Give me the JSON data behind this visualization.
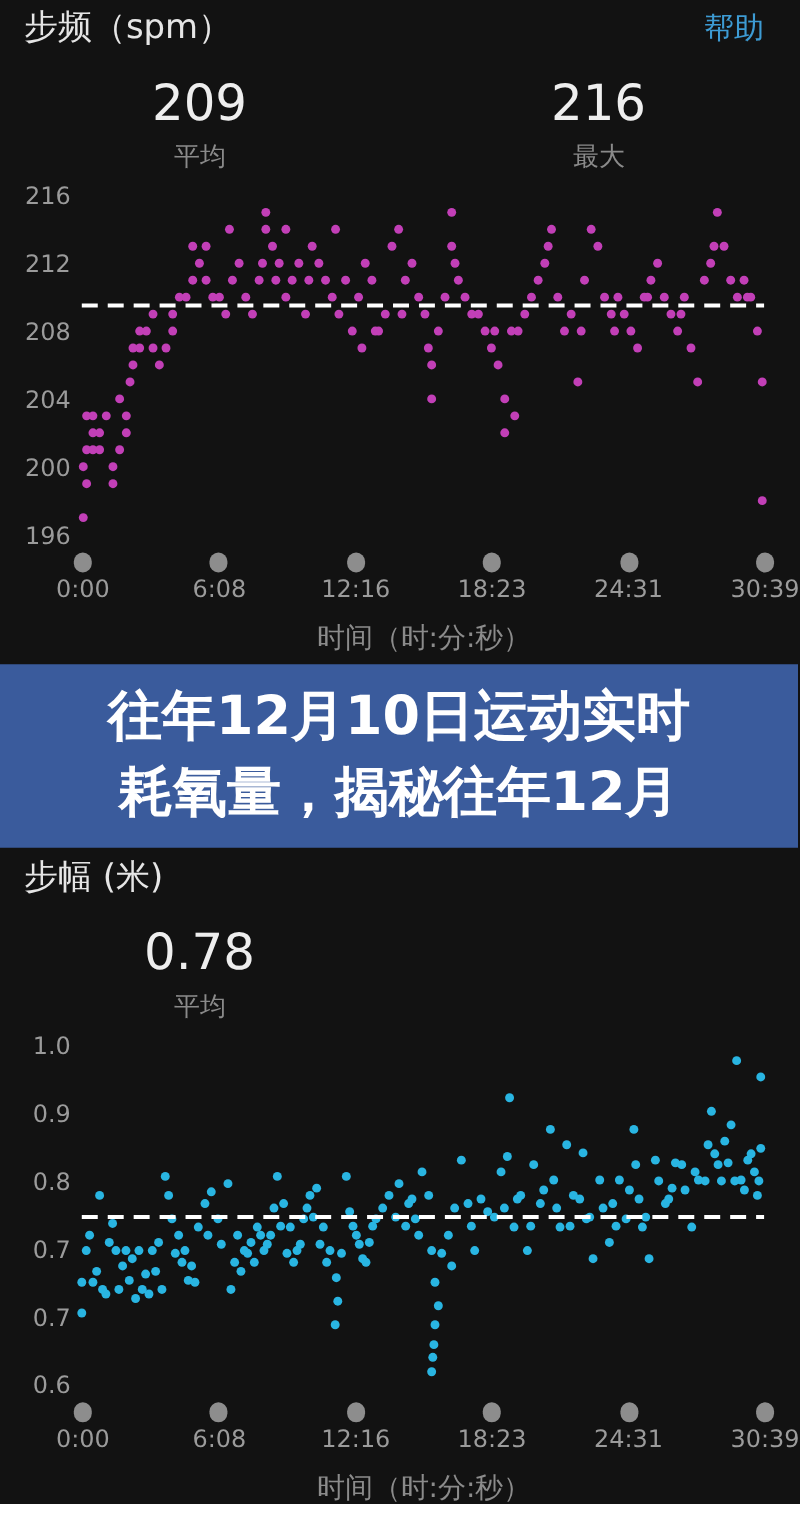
{
  "chart_data": [
    {
      "type": "scatter",
      "title": "步频（spm）",
      "annotations": [
        "帮助",
        "209",
        "平均",
        "216",
        "最大"
      ],
      "xlabel": "时间（时:分:秒）",
      "marker": "circle",
      "x": [
        4,
        4,
        13,
        13,
        13,
        30,
        30,
        30,
        48,
        48,
        66,
        84,
        84,
        102,
        102,
        120,
        120,
        130,
        138,
        138,
        156,
        156,
        174,
        192,
        192,
        209,
        227,
        245,
        245,
        263,
        281,
        299,
        299,
        317,
        335,
        335,
        353,
        371,
        388,
        406,
        424,
        442,
        460,
        478,
        496,
        496,
        514,
        532,
        550,
        550,
        567,
        585,
        603,
        621,
        639,
        657,
        675,
        693,
        711,
        729,
        746,
        764,
        782,
        800,
        818,
        836,
        854,
        872,
        890,
        908,
        925,
        943,
        943,
        961,
        979,
        997,
        997,
        1015,
        1033,
        1051,
        1069,
        1087,
        1104,
        1122,
        1140,
        1140,
        1158,
        1176,
        1194,
        1212,
        1230,
        1248,
        1266,
        1283,
        1301,
        1319,
        1337,
        1355,
        1373,
        1391,
        1409,
        1427,
        1445,
        1462,
        1480,
        1498,
        1516,
        1534,
        1552,
        1570,
        1588,
        1606,
        1624,
        1642,
        1660,
        1678,
        1695,
        1713,
        1731,
        1749,
        1767,
        1785,
        1803,
        1821,
        1834,
        1834,
        398,
        487,
        523,
        612,
        684,
        755,
        791,
        863,
        934,
        1006,
        1113,
        1167,
        1257,
        1346,
        1436,
        1525,
        1615,
        1704,
        1794
      ],
      "series": [
        {
          "color": "#c23fb7",
          "values": [
            197,
            200,
            199,
            201,
            203,
            202,
            201,
            203,
            202,
            201,
            203,
            200,
            199,
            201,
            204,
            202,
            203,
            205,
            206,
            207,
            208,
            207,
            208,
            209,
            207,
            206,
            207,
            208,
            209,
            210,
            210,
            211,
            213,
            212,
            213,
            211,
            210,
            210,
            209,
            211,
            212,
            210,
            209,
            211,
            215,
            214,
            213,
            212,
            214,
            210,
            211,
            212,
            209,
            213,
            212,
            211,
            210,
            209,
            211,
            208,
            210,
            212,
            211,
            208,
            209,
            213,
            214,
            211,
            212,
            210,
            209,
            204,
            206,
            208,
            210,
            215,
            213,
            211,
            210,
            209,
            209,
            208,
            207,
            206,
            202,
            204,
            208,
            208,
            209,
            210,
            211,
            212,
            214,
            210,
            208,
            209,
            205,
            211,
            214,
            213,
            210,
            209,
            210,
            209,
            208,
            207,
            210,
            211,
            212,
            210,
            209,
            208,
            210,
            207,
            205,
            211,
            212,
            215,
            213,
            211,
            210,
            211,
            210,
            208,
            205,
            198,
            214,
            212,
            211,
            211,
            214,
            207,
            208,
            209,
            207,
            212,
            208,
            203,
            213,
            208,
            208,
            210,
            209,
            213,
            210
          ]
        }
      ],
      "xlim": [
        0,
        1839
      ],
      "xticks": [
        {
          "value": 0,
          "label": "0:00"
        },
        {
          "value": 368,
          "label": "6:08"
        },
        {
          "value": 736,
          "label": "12:16"
        },
        {
          "value": 1103,
          "label": "18:23"
        },
        {
          "value": 1471,
          "label": "24:31"
        },
        {
          "value": 1839,
          "label": "30:39"
        }
      ],
      "ylim": [
        196,
        216
      ],
      "yticks": [
        196,
        200,
        204,
        208,
        212,
        216
      ],
      "ref_lines": [
        {
          "axis": "y",
          "value": 209.5,
          "color": "#ffffff",
          "line_style": "dashed"
        }
      ]
    },
    {
      "type": "other",
      "title": "往年12月10日运动实时耗氧量，揭秘往年12月"
    },
    {
      "type": "scatter",
      "title": "步幅 (米)",
      "annotations": [
        "0.78",
        "平均"
      ],
      "xlabel": "时间（时:分:秒）",
      "marker": "circle",
      "x": [
        0,
        0,
        12,
        21,
        30,
        48,
        65,
        74,
        83,
        92,
        110,
        119,
        136,
        154,
        172,
        181,
        190,
        207,
        225,
        234,
        243,
        261,
        278,
        296,
        305,
        314,
        332,
        349,
        367,
        394,
        402,
        420,
        438,
        456,
        473,
        491,
        509,
        527,
        544,
        562,
        580,
        598,
        615,
        633,
        651,
        669,
        686,
        690,
        683,
        713,
        722,
        740,
        757,
        775,
        793,
        828,
        855,
        881,
        899,
        917,
        935,
        943,
        952,
        961,
        952,
        949,
        946,
        943,
        988,
        997,
        1023,
        1041,
        1059,
        1094,
        1130,
        1147,
        1153,
        1165,
        1183,
        1201,
        1218,
        1236,
        1263,
        1272,
        1289,
        1307,
        1325,
        1351,
        1360,
        1378,
        1396,
        1422,
        1431,
        1449,
        1467,
        1488,
        1493,
        1511,
        1529,
        1546,
        1573,
        1591,
        1617,
        1644,
        1662,
        1688,
        1697,
        1715,
        1733,
        1750,
        1765,
        1777,
        1795,
        1813,
        1821,
        1830,
        1830,
        40,
        56,
        100,
        128,
        145,
        163,
        199,
        216,
        252,
        270,
        287,
        340,
        376,
        412,
        429,
        447,
        465,
        482,
        500,
        518,
        536,
        553,
        571,
        589,
        607,
        624,
        642,
        660,
        700,
        731,
        748,
        766,
        784,
        811,
        846,
        873,
        890,
        908,
        970,
        1005,
        1050,
        1076,
        1112,
        1139,
        1174,
        1210,
        1245,
        1280,
        1316,
        1342,
        1369,
        1405,
        1440,
        1476,
        1502,
        1520,
        1555,
        1582,
        1600,
        1626,
        1653,
        1680,
        1706,
        1724,
        1742,
        1760,
        1786,
        1804,
        1825
      ],
      "series": [
        {
          "color": "#29b5e2",
          "values": [
            0.674,
            0.708,
            0.743,
            0.76,
            0.708,
            0.804,
            0.695,
            0.752,
            0.773,
            0.743,
            0.726,
            0.743,
            0.734,
            0.743,
            0.717,
            0.695,
            0.743,
            0.752,
            0.825,
            0.804,
            0.778,
            0.76,
            0.743,
            0.726,
            0.708,
            0.769,
            0.795,
            0.808,
            0.778,
            0.817,
            0.7,
            0.76,
            0.743,
            0.752,
            0.769,
            0.743,
            0.76,
            0.825,
            0.795,
            0.769,
            0.743,
            0.778,
            0.804,
            0.812,
            0.769,
            0.743,
            0.713,
            0.687,
            0.661,
            0.825,
            0.786,
            0.76,
            0.734,
            0.752,
            0.778,
            0.804,
            0.817,
            0.795,
            0.778,
            0.83,
            0.804,
            0.743,
            0.708,
            0.682,
            0.661,
            0.639,
            0.625,
            0.609,
            0.76,
            0.726,
            0.843,
            0.795,
            0.743,
            0.786,
            0.83,
            0.847,
            0.912,
            0.769,
            0.804,
            0.743,
            0.838,
            0.795,
            0.877,
            0.821,
            0.769,
            0.86,
            0.804,
            0.851,
            0.778,
            0.734,
            0.821,
            0.752,
            0.795,
            0.821,
            0.778,
            0.877,
            0.838,
            0.769,
            0.734,
            0.843,
            0.795,
            0.812,
            0.838,
            0.769,
            0.821,
            0.86,
            0.897,
            0.838,
            0.864,
            0.882,
            0.953,
            0.821,
            0.843,
            0.83,
            0.804,
            0.935,
            0.856,
            0.72,
            0.7,
            0.7,
            0.71,
            0.69,
            0.7,
            0.72,
            0.7,
            0.74,
            0.73,
            0.71,
            0.76,
            0.75,
            0.73,
            0.72,
            0.74,
            0.73,
            0.76,
            0.75,
            0.79,
            0.77,
            0.74,
            0.73,
            0.75,
            0.79,
            0.78,
            0.75,
            0.73,
            0.74,
            0.77,
            0.75,
            0.73,
            0.77,
            0.79,
            0.78,
            0.77,
            0.8,
            0.76,
            0.74,
            0.79,
            0.77,
            0.8,
            0.78,
            0.79,
            0.8,
            0.77,
            0.81,
            0.79,
            0.77,
            0.8,
            0.78,
            0.79,
            0.77,
            0.81,
            0.8,
            0.78,
            0.82,
            0.8,
            0.84,
            0.81,
            0.83,
            0.82,
            0.85,
            0.82,
            0.84,
            0.82,
            0.81,
            0.85,
            0.82
          ]
        }
      ],
      "xlim": [
        0,
        1839
      ],
      "xticks": [
        {
          "value": 0,
          "label": "0:00"
        },
        {
          "value": 368,
          "label": "6:08"
        },
        {
          "value": 736,
          "label": "12:16"
        },
        {
          "value": 1103,
          "label": "18:23"
        },
        {
          "value": 1471,
          "label": "24:31"
        },
        {
          "value": 1839,
          "label": "30:39"
        }
      ],
      "ylim": [
        0.595,
        0.97
      ],
      "yticks": [
        {
          "value": 0.595,
          "label": "0.6"
        },
        {
          "value": 0.67,
          "label": "0.7"
        },
        {
          "value": 0.745,
          "label": "0.7"
        },
        {
          "value": 0.82,
          "label": "0.8"
        },
        {
          "value": 0.895,
          "label": "0.9"
        },
        {
          "value": 0.97,
          "label": "1.0"
        }
      ],
      "ref_lines": [
        {
          "axis": "y",
          "value": 0.78,
          "color": "#ffffff",
          "line_style": "dashed"
        }
      ]
    }
  ]
}
